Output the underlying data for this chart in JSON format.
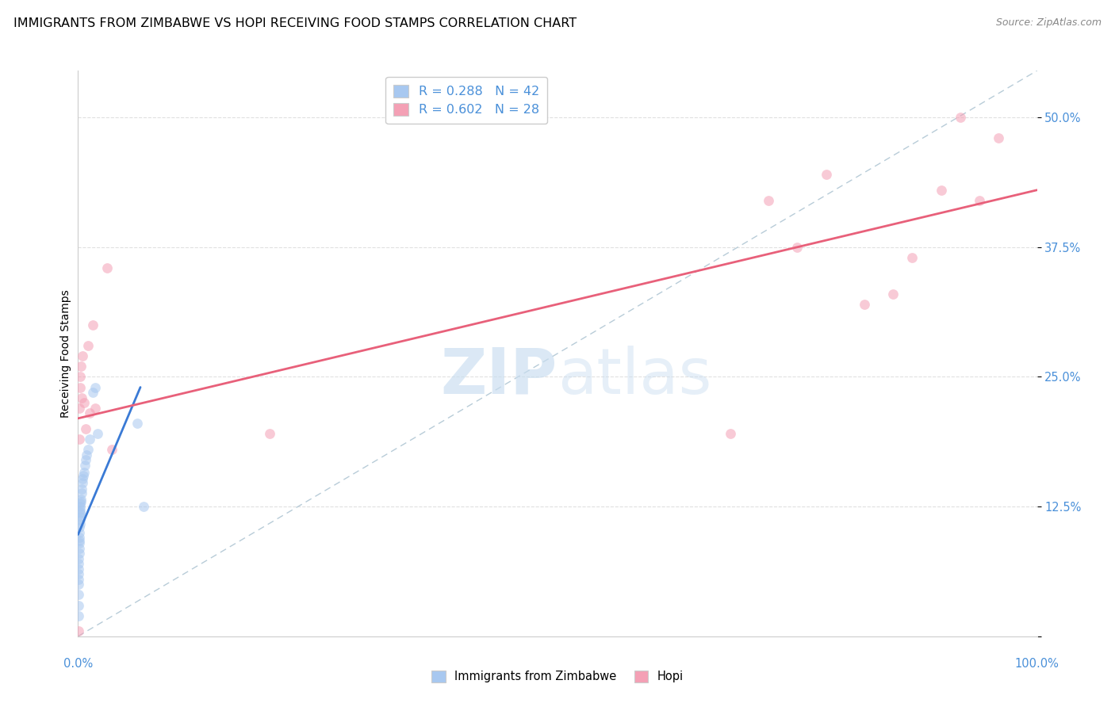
{
  "title": "IMMIGRANTS FROM ZIMBABWE VS HOPI RECEIVING FOOD STAMPS CORRELATION CHART",
  "source": "Source: ZipAtlas.com",
  "ylabel": "Receiving Food Stamps",
  "yticks": [
    0.0,
    0.125,
    0.25,
    0.375,
    0.5
  ],
  "ytick_labels": [
    "",
    "12.5%",
    "25.0%",
    "37.5%",
    "50.0%"
  ],
  "xlim": [
    0.0,
    1.0
  ],
  "ylim": [
    0.0,
    0.545
  ],
  "legend_entries": [
    {
      "label": "R = 0.288   N = 42",
      "color": "#a8c8f0"
    },
    {
      "label": "R = 0.602   N = 28",
      "color": "#f4a0b5"
    }
  ],
  "legend_labels_bottom": [
    "Immigrants from Zimbabwe",
    "Hopi"
  ],
  "blue_scatter_x": [
    0.0005,
    0.0005,
    0.0005,
    0.0005,
    0.0005,
    0.0005,
    0.0005,
    0.0007,
    0.0007,
    0.001,
    0.001,
    0.001,
    0.0012,
    0.0012,
    0.0015,
    0.0015,
    0.0018,
    0.0018,
    0.002,
    0.002,
    0.0022,
    0.0022,
    0.0025,
    0.0025,
    0.0028,
    0.003,
    0.0035,
    0.004,
    0.0045,
    0.005,
    0.0055,
    0.006,
    0.007,
    0.008,
    0.009,
    0.01,
    0.012,
    0.015,
    0.018,
    0.02,
    0.062,
    0.068
  ],
  "blue_scatter_y": [
    0.02,
    0.03,
    0.04,
    0.05,
    0.055,
    0.06,
    0.065,
    0.07,
    0.075,
    0.08,
    0.085,
    0.09,
    0.092,
    0.095,
    0.1,
    0.105,
    0.108,
    0.112,
    0.115,
    0.118,
    0.12,
    0.122,
    0.125,
    0.128,
    0.13,
    0.132,
    0.138,
    0.142,
    0.148,
    0.152,
    0.155,
    0.158,
    0.165,
    0.17,
    0.175,
    0.18,
    0.19,
    0.235,
    0.24,
    0.195,
    0.205,
    0.125
  ],
  "pink_scatter_x": [
    0.0005,
    0.001,
    0.0015,
    0.002,
    0.0025,
    0.003,
    0.004,
    0.005,
    0.006,
    0.008,
    0.01,
    0.012,
    0.015,
    0.018,
    0.03,
    0.035,
    0.2,
    0.68,
    0.72,
    0.75,
    0.78,
    0.82,
    0.85,
    0.87,
    0.9,
    0.92,
    0.94,
    0.96
  ],
  "pink_scatter_y": [
    0.005,
    0.22,
    0.19,
    0.24,
    0.25,
    0.26,
    0.23,
    0.27,
    0.225,
    0.2,
    0.28,
    0.215,
    0.3,
    0.22,
    0.355,
    0.18,
    0.195,
    0.195,
    0.42,
    0.375,
    0.445,
    0.32,
    0.33,
    0.365,
    0.43,
    0.5,
    0.42,
    0.48
  ],
  "blue_line_x": [
    0.0,
    0.065
  ],
  "blue_line_y": [
    0.098,
    0.24
  ],
  "pink_line_x": [
    0.0,
    1.0
  ],
  "pink_line_y": [
    0.21,
    0.43
  ],
  "diagonal_line_x": [
    0.0,
    1.0
  ],
  "diagonal_line_y": [
    0.0,
    0.545
  ],
  "watermark_zip": "ZIP",
  "watermark_atlas": "atlas",
  "background_color": "#ffffff",
  "grid_color": "#e0e0e0",
  "blue_color": "#a8c8f0",
  "pink_color": "#f4a0b5",
  "blue_line_color": "#3a7ad5",
  "pink_line_color": "#e8607a",
  "diagonal_color": "#b8ccd8",
  "title_fontsize": 11.5,
  "axis_label_fontsize": 10,
  "tick_fontsize": 10.5,
  "scatter_size": 85,
  "scatter_alpha": 0.55
}
